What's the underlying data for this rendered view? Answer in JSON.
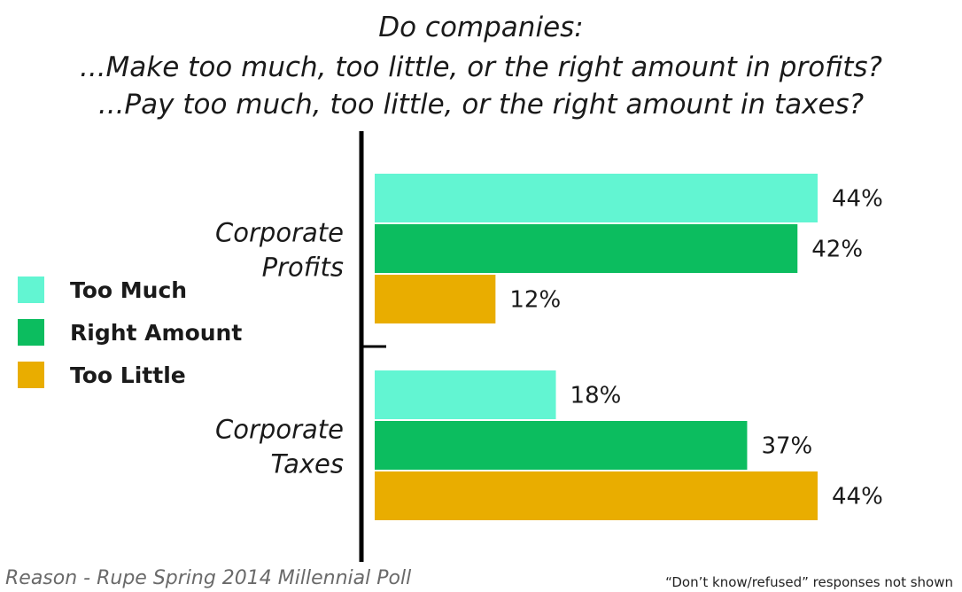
{
  "title_lines": [
    "Do companies:",
    "...Make too much, too little, or the right amount in profits?",
    "...Pay too much, too little, or the right amount in taxes?"
  ],
  "source": "Reason - Rupe Spring 2014 Millennial Poll",
  "note": "“Don’t know/refused” responses not shown",
  "colors": {
    "too_much": "#62f5d2",
    "right_amount": "#0cbd5f",
    "too_little": "#e9ad00",
    "axis": "#000000"
  },
  "chart_data": {
    "type": "bar",
    "orientation": "horizontal",
    "categories": [
      [
        "Corporate",
        "Profits"
      ],
      [
        "Corporate",
        "Taxes"
      ]
    ],
    "series": [
      {
        "name": "Too Much",
        "color": "#62f5d2",
        "values": [
          44,
          18
        ]
      },
      {
        "name": "Right Amount",
        "color": "#0cbd5f",
        "values": [
          42,
          37
        ]
      },
      {
        "name": "Too Little",
        "color": "#e9ad00",
        "values": [
          12,
          44
        ]
      }
    ],
    "value_suffix": "%",
    "xlim": [
      0,
      44
    ],
    "grid": false,
    "legend_position": "left"
  }
}
